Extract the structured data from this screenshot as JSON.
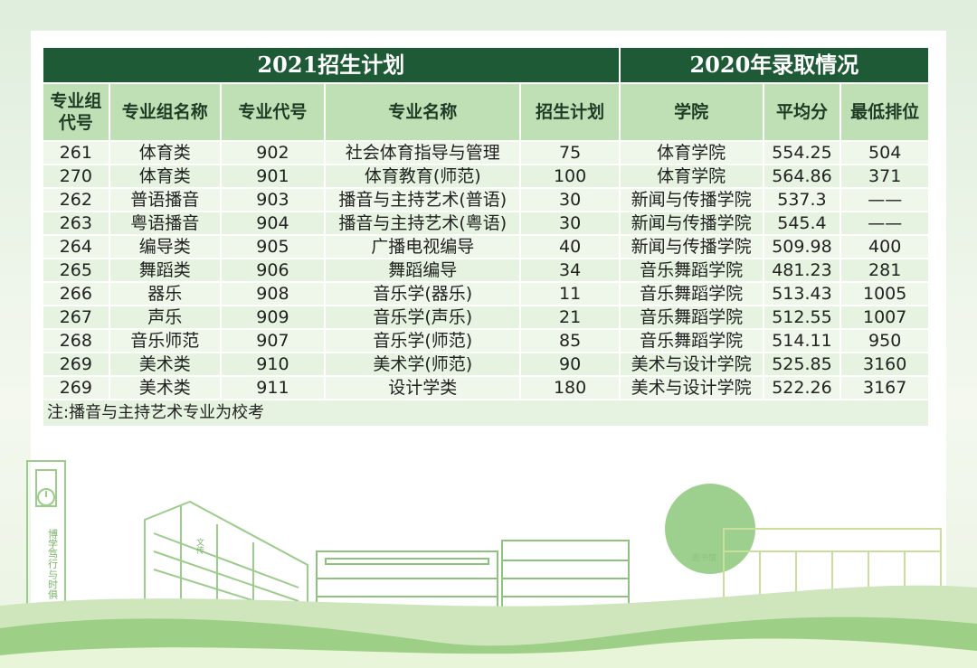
{
  "headers": {
    "plan_title": "2021招生计划",
    "admission_title": "2020年录取情况",
    "columns": [
      "专业组代号",
      "专业组名称",
      "专业代号",
      "专业名称",
      "招生计划",
      "学院",
      "平均分",
      "最低排位"
    ]
  },
  "rows": [
    [
      "261",
      "体育类",
      "902",
      "社会体育指导与管理",
      "75",
      "体育学院",
      "554.25",
      "504"
    ],
    [
      "270",
      "体育类",
      "901",
      "体育教育(师范)",
      "100",
      "体育学院",
      "564.86",
      "371"
    ],
    [
      "262",
      "普语播音",
      "903",
      "播音与主持艺术(普语)",
      "30",
      "新闻与传播学院",
      "537.3",
      "——"
    ],
    [
      "263",
      "粤语播音",
      "904",
      "播音与主持艺术(粤语)",
      "30",
      "新闻与传播学院",
      "545.4",
      "——"
    ],
    [
      "264",
      "编导类",
      "905",
      "广播电视编导",
      "40",
      "新闻与传播学院",
      "509.98",
      "400"
    ],
    [
      "265",
      "舞蹈类",
      "906",
      "舞蹈编导",
      "34",
      "音乐舞蹈学院",
      "481.23",
      "281"
    ],
    [
      "266",
      "器乐",
      "908",
      "音乐学(器乐)",
      "11",
      "音乐舞蹈学院",
      "513.43",
      "1005"
    ],
    [
      "267",
      "声乐",
      "909",
      "音乐学(声乐)",
      "21",
      "音乐舞蹈学院",
      "512.55",
      "1007"
    ],
    [
      "268",
      "音乐师范",
      "907",
      "音乐学(师范)",
      "85",
      "音乐舞蹈学院",
      "514.11",
      "950"
    ],
    [
      "269",
      "美术类",
      "910",
      "美术学(师范)",
      "90",
      "美术与设计学院",
      "525.85",
      "3160"
    ],
    [
      "269",
      "美术类",
      "911",
      "设计学类",
      "180",
      "美术与设计学院",
      "522.26",
      "3167"
    ]
  ],
  "note": "注:播音与主持艺术专业为校考",
  "scene": {
    "left_tower_text": "博学笃行",
    "left_tower_text2": "与时俱",
    "building_sign": "文传",
    "library_sign": "图书馆"
  },
  "colors": {
    "header_dark": "#1f5a36",
    "header_light": "#bfe0b4",
    "row_bg": "#e6f3e0",
    "hill_green": "#8cc77a"
  }
}
